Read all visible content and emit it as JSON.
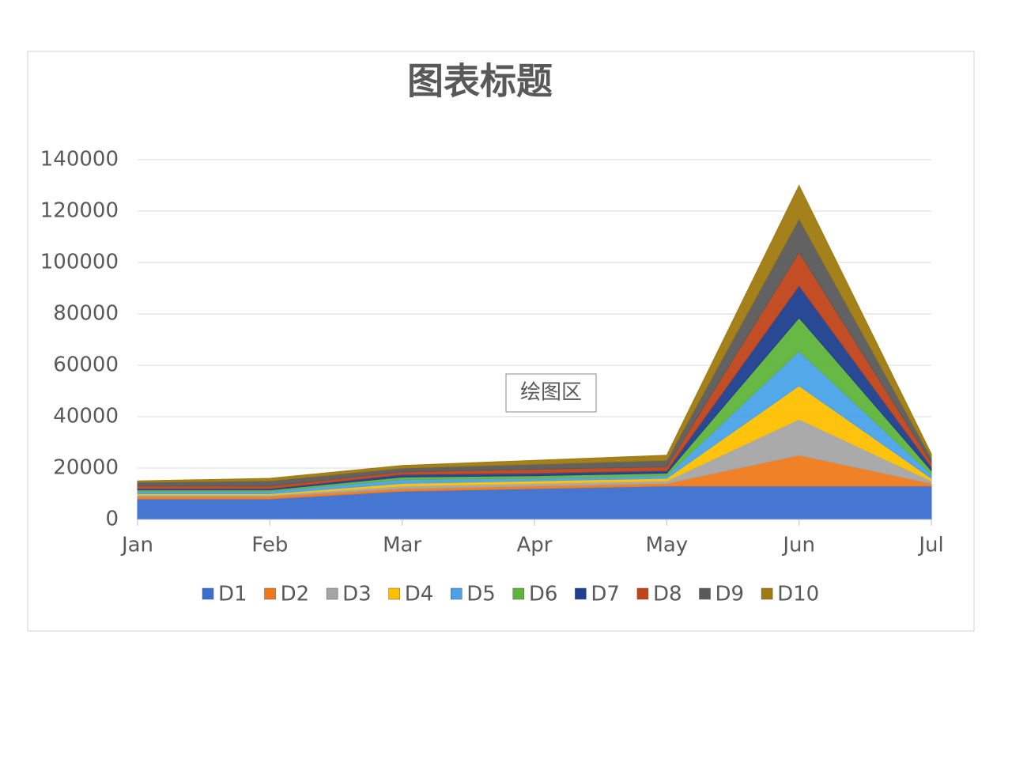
{
  "chart_data": {
    "type": "stacked_area",
    "title": "图表标题",
    "categories": [
      "Jan",
      "Feb",
      "Mar",
      "Apr",
      "May",
      "Jun",
      "Jul"
    ],
    "series": [
      {
        "name": "D1",
        "color": "#3a6fd0",
        "values": [
          8000,
          8000,
          11000,
          12000,
          13000,
          13000,
          13000
        ]
      },
      {
        "name": "D2",
        "color": "#f07a1a",
        "values": [
          1000,
          1000,
          1000,
          1000,
          1000,
          12000,
          1000
        ]
      },
      {
        "name": "D3",
        "color": "#a5a5a5",
        "values": [
          500,
          500,
          1000,
          1000,
          1000,
          14000,
          1000
        ]
      },
      {
        "name": "D4",
        "color": "#ffc000",
        "values": [
          500,
          500,
          1000,
          1000,
          1000,
          13000,
          1000
        ]
      },
      {
        "name": "D5",
        "color": "#4aa3e8",
        "values": [
          1000,
          1000,
          1500,
          1000,
          1000,
          13500,
          1500
        ]
      },
      {
        "name": "D6",
        "color": "#5fb43a",
        "values": [
          500,
          500,
          1000,
          1000,
          1000,
          13000,
          1500
        ]
      },
      {
        "name": "D7",
        "color": "#1f3f8f",
        "values": [
          500,
          500,
          1000,
          1000,
          1000,
          12500,
          1500
        ]
      },
      {
        "name": "D8",
        "color": "#c0451a",
        "values": [
          1000,
          1000,
          1000,
          1500,
          1500,
          13000,
          1500
        ]
      },
      {
        "name": "D9",
        "color": "#5a5a5a",
        "values": [
          1500,
          2000,
          1500,
          2000,
          2500,
          13000,
          2000
        ]
      },
      {
        "name": "D10",
        "color": "#a07a10",
        "values": [
          500,
          1000,
          1000,
          1500,
          2000,
          13000,
          1500
        ]
      }
    ],
    "ylim": [
      0,
      140000
    ],
    "yticks": [
      0,
      20000,
      40000,
      60000,
      80000,
      100000,
      120000,
      140000
    ],
    "grid": true,
    "legend": "bottom",
    "tooltip": "绘图区"
  }
}
